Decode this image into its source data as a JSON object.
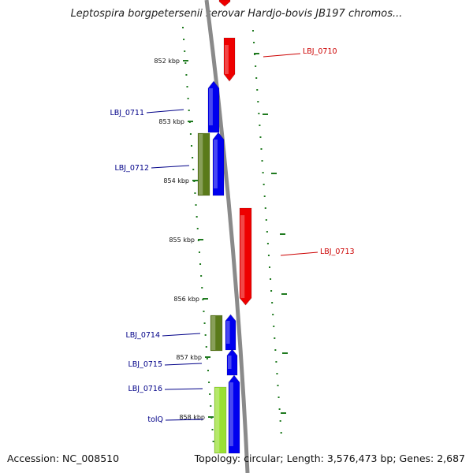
{
  "title": "Leptospira borgpetersenii serovar Hardjo-bovis JB197 chromos...",
  "footer": {
    "accession": "Accession: NC_008510",
    "summary": "Topology: circular; Length: 3,576,473 bp; Genes: 2,687"
  },
  "colors": {
    "backbone": "#8a8a8a",
    "tick": "#1f7a1f",
    "forward_cds": "#0000ee",
    "reverse_cds": "#ee0000",
    "other_forward": "#5a7a1a",
    "other_forward_light": "#99e033",
    "forward_label": "#000088",
    "reverse_label": "#cc0000"
  },
  "ticks": [
    {
      "label": "852 kbp"
    },
    {
      "label": "853 kbp"
    },
    {
      "label": "854 kbp"
    },
    {
      "label": "855 kbp"
    },
    {
      "label": "856 kbp"
    },
    {
      "label": "857 kbp"
    },
    {
      "label": "858 kbp"
    }
  ],
  "genes": [
    {
      "name": "",
      "track": "reverse-cds",
      "strand": "reverse"
    },
    {
      "name": "LBJ_0710",
      "track": "reverse-cds",
      "strand": "reverse"
    },
    {
      "name": "LBJ_0711",
      "track": "forward-cds",
      "strand": "forward"
    },
    {
      "name": "LBJ_0712",
      "track": "other-forward",
      "strand": "forward"
    },
    {
      "name": "",
      "track": "forward-cds",
      "strand": "forward"
    },
    {
      "name": "LBJ_0713",
      "track": "reverse-cds",
      "strand": "reverse"
    },
    {
      "name": "LBJ_0714",
      "track": "other-forward",
      "strand": "forward"
    },
    {
      "name": "",
      "track": "forward-cds",
      "strand": "forward"
    },
    {
      "name": "LBJ_0715",
      "track": "forward-cds",
      "strand": "forward"
    },
    {
      "name": "LBJ_0716",
      "track": "forward-cds",
      "strand": "forward"
    },
    {
      "name": "tolQ",
      "track": "other-forward-light",
      "strand": "forward"
    }
  ]
}
